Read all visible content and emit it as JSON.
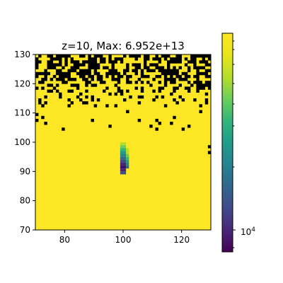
{
  "chart_data": {
    "type": "heatmap",
    "title": "z=10, Max: 6.952e+13",
    "xlabel": "",
    "ylabel": "",
    "xlim": [
      70,
      130
    ],
    "ylim": [
      70,
      130
    ],
    "x_ticks": [
      80,
      100,
      120
    ],
    "x_tick_labels": [
      "80",
      "100",
      "120"
    ],
    "y_ticks": [
      70,
      80,
      90,
      100,
      110,
      120,
      130
    ],
    "y_tick_labels": [
      "70",
      "80",
      "90",
      "100",
      "110",
      "120",
      "130"
    ],
    "colormap": "viridis",
    "colorbar": {
      "scale": "log",
      "major_tick_labels": [
        "10^4"
      ],
      "minor_ticks_count": 9
    },
    "background_value_color": "#fde725",
    "missing_value_color": "#000000",
    "regions": [
      {
        "description": "black (no-data) pixels concentrated near the top",
        "y_range": [
          104,
          130
        ]
      },
      {
        "description": "low-value vertical streak",
        "x_center": 100,
        "y_range": [
          89,
          100
        ],
        "min_color": "#3b0f70"
      }
    ]
  }
}
